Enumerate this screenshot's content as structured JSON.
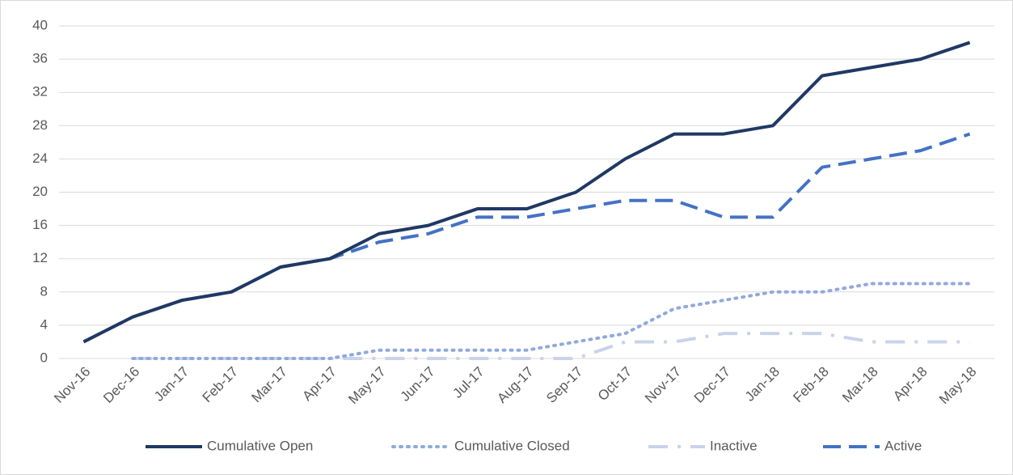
{
  "chart_data": {
    "type": "line",
    "categories": [
      "Nov-16",
      "Dec-16",
      "Jan-17",
      "Feb-17",
      "Mar-17",
      "Apr-17",
      "May-17",
      "Jun-17",
      "Jul-17",
      "Aug-17",
      "Sep-17",
      "Oct-17",
      "Nov-17",
      "Dec-17",
      "Jan-18",
      "Feb-18",
      "Mar-18",
      "Apr-18",
      "May-18"
    ],
    "series": [
      {
        "name": "Cumulative Open",
        "color": "#203864",
        "style": "solid",
        "values": [
          2,
          5,
          7,
          8,
          11,
          12,
          15,
          16,
          18,
          18,
          20,
          24,
          27,
          27,
          28,
          34,
          35,
          36,
          38
        ]
      },
      {
        "name": "Cumulative Closed",
        "color": "#8faadc",
        "style": "dotted",
        "values": [
          null,
          0,
          0,
          0,
          0,
          0,
          1,
          1,
          1,
          1,
          2,
          3,
          6,
          7,
          8,
          8,
          9,
          9,
          9
        ]
      },
      {
        "name": "Inactive",
        "color": "#c9d3ea",
        "style": "dashdot",
        "values": [
          null,
          0,
          0,
          0,
          0,
          0,
          0,
          0,
          0,
          0,
          0,
          2,
          2,
          3,
          3,
          3,
          2,
          2,
          2
        ]
      },
      {
        "name": "Active",
        "color": "#4472c4",
        "style": "dashed",
        "values": [
          2,
          5,
          7,
          8,
          11,
          12,
          14,
          15,
          17,
          17,
          18,
          19,
          19,
          17,
          17,
          23,
          24,
          25,
          27
        ]
      }
    ],
    "ylim": [
      0,
      40
    ],
    "yticks": [
      0,
      4,
      8,
      12,
      16,
      20,
      24,
      28,
      32,
      36,
      40
    ],
    "grid": true,
    "legend": "bottom"
  }
}
